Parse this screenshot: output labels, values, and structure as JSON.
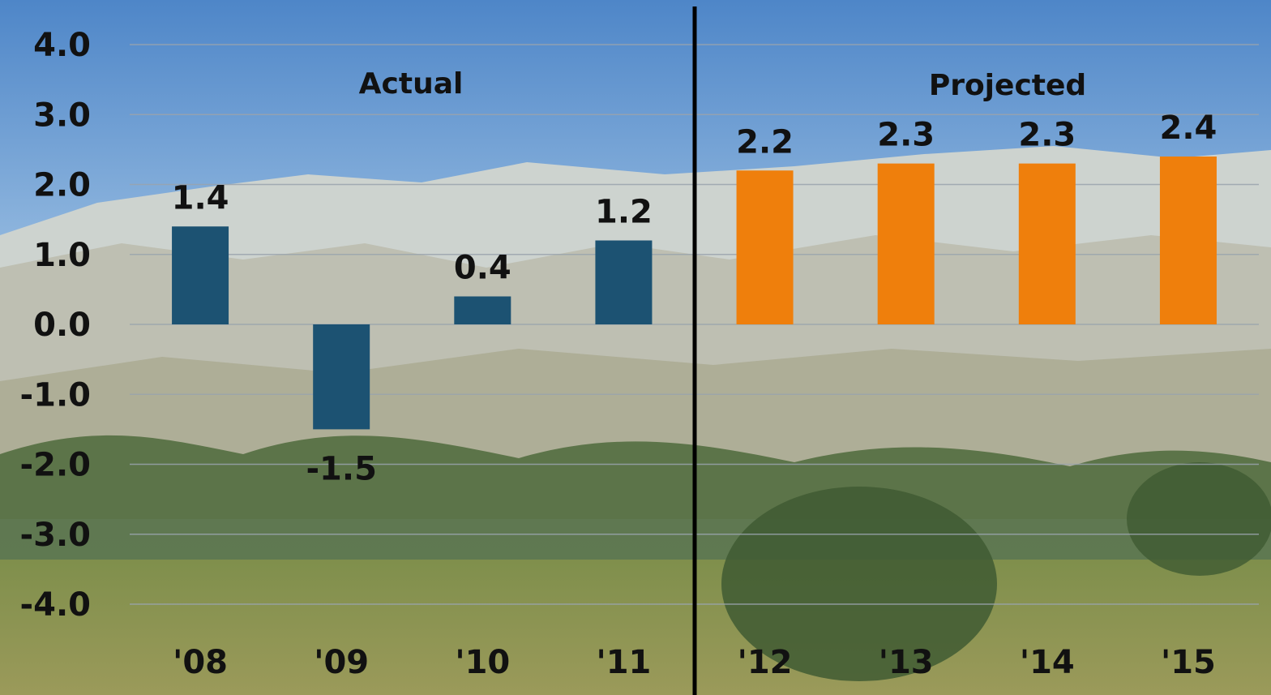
{
  "chart_data": {
    "type": "bar",
    "categories": [
      "'08",
      "'09",
      "'10",
      "'11",
      "'12",
      "'13",
      "'14",
      "'15"
    ],
    "series": [
      {
        "values": [
          1.4,
          -1.5,
          0.4,
          1.2,
          2.2,
          2.3,
          2.3,
          2.4
        ]
      }
    ],
    "data_labels": [
      "1.4",
      "-1.5",
      "0.4",
      "1.2",
      "2.2",
      "2.3",
      "2.3",
      "2.4"
    ],
    "bar_groups": [
      "actual",
      "actual",
      "actual",
      "actual",
      "projected",
      "projected",
      "projected",
      "projected"
    ],
    "y_ticks": [
      "4.0",
      "3.0",
      "2.0",
      "1.0",
      "0.0",
      "-1.0",
      "-2.0",
      "-3.0",
      "-4.0"
    ],
    "ylim": [
      -4,
      4
    ],
    "grid": true,
    "title": "",
    "xlabel": "",
    "ylabel": "",
    "annotations": {
      "actual_label": "Actual",
      "projected_label": "Projected"
    },
    "colors": {
      "actual": "#1c5272",
      "projected": "#ef7f0c",
      "divider": "#000000"
    }
  }
}
